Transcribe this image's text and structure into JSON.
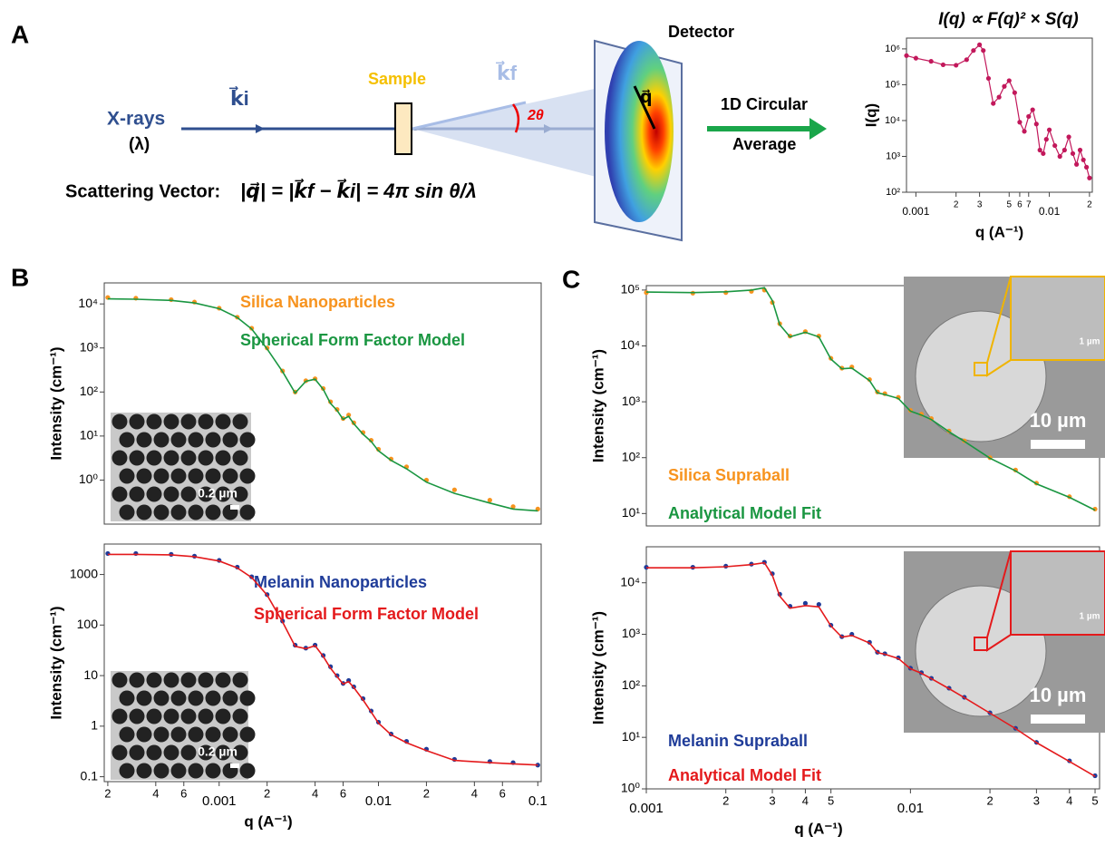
{
  "panel_labels": [
    "A",
    "B",
    "C"
  ],
  "diagram": {
    "xrays": "X-rays",
    "lambda": "(λ)",
    "ki": "k⃗i",
    "kf": "k⃗f",
    "sample": "Sample",
    "detector": "Detector",
    "angle": "2θ",
    "q": "q⃗",
    "average_1": "1D Circular",
    "average_2": "Average",
    "vector_label": "Scattering Vector:",
    "formula": "|q⃗| = |k⃗f − k⃗i| = 4π sin θ/λ"
  },
  "chart_data": [
    {
      "type": "line",
      "title": "I(q) ∝ F(q)² × S(q)",
      "x_label": "q (A⁻¹)",
      "y_label": "I(q)",
      "xscale": "log",
      "yscale": "log",
      "xlim": [
        0.00085,
        0.021
      ],
      "ylim": [
        100,
        2000000
      ],
      "xticks": [
        {
          "value": 0.001,
          "label": "0.001"
        },
        {
          "value": 0.002,
          "label": "2"
        },
        {
          "value": 0.003,
          "label": "3"
        },
        {
          "value": 0.005,
          "label": "5"
        },
        {
          "value": 0.006,
          "label": "6"
        },
        {
          "value": 0.007,
          "label": "7"
        },
        {
          "value": 0.01,
          "label": "0.01"
        },
        {
          "value": 0.02,
          "label": "2"
        }
      ],
      "yticks": [
        {
          "value": 100,
          "label": "10²"
        },
        {
          "value": 1000,
          "label": "10³"
        },
        {
          "value": 10000,
          "label": "10⁴"
        },
        {
          "value": 100000,
          "label": "10⁵"
        },
        {
          "value": 1000000,
          "label": "10⁶"
        }
      ],
      "x": [
        0.00085,
        0.001,
        0.0013,
        0.0016,
        0.002,
        0.0024,
        0.0027,
        0.003,
        0.0032,
        0.0035,
        0.0038,
        0.0042,
        0.0046,
        0.005,
        0.0055,
        0.006,
        0.0065,
        0.007,
        0.0075,
        0.008,
        0.0085,
        0.009,
        0.0095,
        0.01,
        0.011,
        0.012,
        0.013,
        0.014,
        0.015,
        0.016,
        0.017,
        0.018,
        0.019,
        0.02
      ],
      "series": [
        {
          "color": "#c2185b",
          "style": "line+markers",
          "values": [
            650000,
            550000,
            450000,
            360000,
            350000,
            500000,
            900000,
            1300000,
            900000,
            150000,
            30000,
            45000,
            90000,
            130000,
            60000,
            9000,
            5000,
            13000,
            20000,
            8000,
            1500,
            1200,
            3000,
            5500,
            2000,
            1000,
            1500,
            3500,
            1200,
            600,
            1500,
            800,
            500,
            250
          ]
        }
      ]
    },
    {
      "type": "line",
      "y_label": "Intensity (cm⁻¹)",
      "xscale": "log",
      "yscale": "log",
      "inset_scale": "0.2 µm",
      "xlim": [
        0.00019,
        0.105
      ],
      "ylim": [
        0.1,
        30000
      ],
      "yticks": [
        {
          "value": 1,
          "label": "10⁰"
        },
        {
          "value": 10,
          "label": "10¹"
        },
        {
          "value": 100,
          "label": "10²"
        },
        {
          "value": 1000,
          "label": "10³"
        },
        {
          "value": 10000,
          "label": "10⁴"
        }
      ],
      "x": [
        0.0002,
        0.0003,
        0.0005,
        0.0007,
        0.001,
        0.0013,
        0.0016,
        0.002,
        0.0025,
        0.003,
        0.0035,
        0.004,
        0.0045,
        0.005,
        0.0055,
        0.006,
        0.0065,
        0.007,
        0.008,
        0.009,
        0.01,
        0.012,
        0.015,
        0.02,
        0.03,
        0.05,
        0.07,
        0.1
      ],
      "series": [
        {
          "name": "Silica Nanoparticles",
          "color": "#f7931e",
          "style": "markers",
          "values": [
            14000,
            13500,
            12500,
            11000,
            8000,
            5000,
            2800,
            1000,
            300,
            100,
            180,
            200,
            120,
            60,
            40,
            25,
            30,
            20,
            12,
            8,
            5,
            3,
            2,
            1,
            0.6,
            0.35,
            0.25,
            0.22
          ]
        },
        {
          "name": "Spherical Form Factor Model",
          "color": "#1a9641",
          "style": "line",
          "values": [
            13000,
            12800,
            12000,
            10500,
            7800,
            4900,
            2700,
            950,
            290,
            95,
            175,
            195,
            115,
            55,
            38,
            24,
            28,
            19,
            11,
            7.5,
            4.6,
            2.8,
            1.8,
            0.9,
            0.5,
            0.3,
            0.22,
            0.2
          ]
        }
      ]
    },
    {
      "type": "line",
      "x_label": "q (A⁻¹)",
      "y_label": "Intensity (cm⁻¹)",
      "xscale": "log",
      "yscale": "log",
      "inset_scale": "0.2 µm",
      "xlim": [
        0.00019,
        0.105
      ],
      "ylim": [
        0.08,
        4000
      ],
      "xticks": [
        {
          "value": 0.0002,
          "label": "2"
        },
        {
          "value": 0.0004,
          "label": "4"
        },
        {
          "value": 0.0006,
          "label": "6"
        },
        {
          "value": 0.001,
          "label": "0.001"
        },
        {
          "value": 0.002,
          "label": "2"
        },
        {
          "value": 0.004,
          "label": "4"
        },
        {
          "value": 0.006,
          "label": "6"
        },
        {
          "value": 0.01,
          "label": "0.01"
        },
        {
          "value": 0.02,
          "label": "2"
        },
        {
          "value": 0.04,
          "label": "4"
        },
        {
          "value": 0.06,
          "label": "6"
        },
        {
          "value": 0.1,
          "label": "0.1"
        }
      ],
      "yticks": [
        0.1,
        1,
        10,
        100,
        1000
      ],
      "x": [
        0.0002,
        0.0003,
        0.0005,
        0.0007,
        0.001,
        0.0013,
        0.0016,
        0.002,
        0.0025,
        0.003,
        0.0035,
        0.004,
        0.0045,
        0.005,
        0.0055,
        0.006,
        0.0065,
        0.007,
        0.008,
        0.009,
        0.01,
        0.012,
        0.015,
        0.02,
        0.03,
        0.05,
        0.07,
        0.1
      ],
      "series": [
        {
          "name": "Melanin Nanoparticles",
          "color": "#1f3c99",
          "style": "markers",
          "values": [
            2600,
            2600,
            2500,
            2300,
            1900,
            1400,
            900,
            400,
            120,
            40,
            35,
            40,
            25,
            15,
            10,
            7,
            8,
            6,
            3.5,
            2,
            1.2,
            0.7,
            0.5,
            0.35,
            0.22,
            0.2,
            0.19,
            0.17
          ]
        },
        {
          "name": "Spherical Form Factor Model",
          "color": "#e41a1c",
          "style": "line",
          "values": [
            2500,
            2500,
            2450,
            2250,
            1850,
            1350,
            870,
            390,
            115,
            38,
            34,
            39,
            24,
            14,
            9.5,
            6.8,
            7.6,
            5.8,
            3.3,
            1.9,
            1.15,
            0.68,
            0.47,
            0.33,
            0.21,
            0.19,
            0.18,
            0.17
          ]
        }
      ]
    },
    {
      "type": "line",
      "y_label": "Intensity (cm⁻¹)",
      "xscale": "log",
      "yscale": "log",
      "inset_scale": "10 µm",
      "zoom_scale": "1 µm",
      "inset_color": "#f0b400",
      "xlim": [
        0.001,
        0.052
      ],
      "ylim": [
        6,
        120000
      ],
      "yticks": [
        {
          "value": 10,
          "label": "10¹"
        },
        {
          "value": 100,
          "label": "10²"
        },
        {
          "value": 1000,
          "label": "10³"
        },
        {
          "value": 10000,
          "label": "10⁴"
        },
        {
          "value": 100000,
          "label": "10⁵"
        }
      ],
      "x": [
        0.001,
        0.0015,
        0.002,
        0.0025,
        0.0028,
        0.003,
        0.0032,
        0.0035,
        0.004,
        0.0045,
        0.005,
        0.0055,
        0.006,
        0.007,
        0.0075,
        0.008,
        0.009,
        0.01,
        0.011,
        0.012,
        0.014,
        0.016,
        0.02,
        0.025,
        0.03,
        0.04,
        0.05
      ],
      "series": [
        {
          "name": "Silica Supraball",
          "color": "#f7931e",
          "style": "markers",
          "values": [
            90000,
            88000,
            90000,
            95000,
            100000,
            60000,
            25000,
            15000,
            18000,
            15000,
            6000,
            4000,
            4200,
            2500,
            1500,
            1400,
            1200,
            700,
            600,
            500,
            300,
            200,
            100,
            60,
            35,
            20,
            12
          ]
        },
        {
          "name": "Analytical Model Fit",
          "color": "#1a9641",
          "style": "line",
          "values": [
            92000,
            90000,
            93000,
            100000,
            110000,
            65000,
            24000,
            14500,
            17500,
            14500,
            5800,
            3900,
            4000,
            2400,
            1450,
            1350,
            1150,
            680,
            580,
            480,
            290,
            195,
            98,
            58,
            34,
            19.5,
            11.5
          ]
        }
      ]
    },
    {
      "type": "line",
      "x_label": "q (A⁻¹)",
      "y_label": "Intensity (cm⁻¹)",
      "xscale": "log",
      "yscale": "log",
      "inset_scale": "10 µm",
      "zoom_scale": "1 µm",
      "inset_color": "#e41a1c",
      "xlim": [
        0.001,
        0.052
      ],
      "ylim": [
        1,
        50000
      ],
      "xticks": [
        {
          "value": 0.001,
          "label": "0.001"
        },
        {
          "value": 0.002,
          "label": "2"
        },
        {
          "value": 0.003,
          "label": "3"
        },
        {
          "value": 0.004,
          "label": "4"
        },
        {
          "value": 0.005,
          "label": "5"
        },
        {
          "value": 0.01,
          "label": "0.01"
        },
        {
          "value": 0.02,
          "label": "2"
        },
        {
          "value": 0.03,
          "label": "3"
        },
        {
          "value": 0.04,
          "label": "4"
        },
        {
          "value": 0.05,
          "label": "5"
        }
      ],
      "yticks": [
        {
          "value": 1,
          "label": "10⁰"
        },
        {
          "value": 10,
          "label": "10¹"
        },
        {
          "value": 100,
          "label": "10²"
        },
        {
          "value": 1000,
          "label": "10³"
        },
        {
          "value": 10000,
          "label": "10⁴"
        }
      ],
      "x": [
        0.001,
        0.0015,
        0.002,
        0.0025,
        0.0028,
        0.003,
        0.0032,
        0.0035,
        0.004,
        0.0045,
        0.005,
        0.0055,
        0.006,
        0.007,
        0.0075,
        0.008,
        0.009,
        0.01,
        0.011,
        0.012,
        0.014,
        0.016,
        0.02,
        0.025,
        0.03,
        0.04,
        0.05
      ],
      "series": [
        {
          "name": "Melanin Supraball",
          "color": "#1f3c99",
          "style": "markers",
          "values": [
            20000,
            20000,
            21000,
            23000,
            25000,
            15000,
            6000,
            3500,
            4000,
            3800,
            1500,
            900,
            1000,
            700,
            450,
            420,
            350,
            220,
            180,
            140,
            90,
            60,
            30,
            15,
            8,
            3.5,
            1.8
          ]
        },
        {
          "name": "Analytical Model Fit",
          "color": "#e41a1c",
          "style": "line",
          "values": [
            19500,
            19500,
            20500,
            22500,
            24500,
            14000,
            5500,
            3200,
            3600,
            3400,
            1450,
            880,
            950,
            680,
            440,
            410,
            340,
            215,
            175,
            138,
            88,
            59,
            29.5,
            14.8,
            7.9,
            3.4,
            1.75
          ]
        }
      ]
    }
  ]
}
